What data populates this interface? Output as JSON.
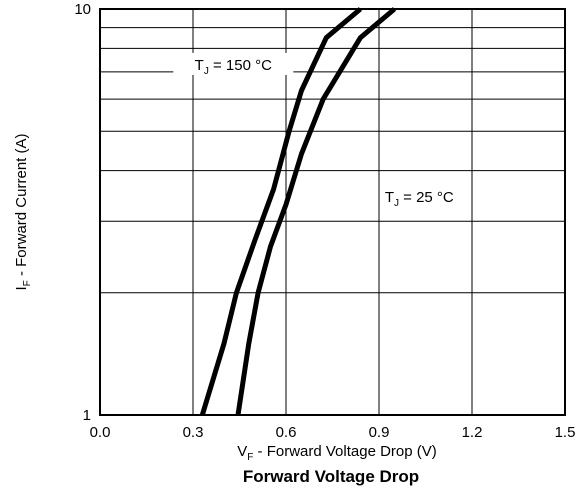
{
  "chart_data": {
    "type": "line",
    "title": "Forward Voltage Drop",
    "xlabel": {
      "main": "V",
      "sub": "F",
      "rest": " - Forward Voltage Drop (V)"
    },
    "ylabel": {
      "main": "I",
      "sub": "F",
      "rest": "  - Forward Current (A)"
    },
    "x_scale": "linear",
    "y_scale": "log",
    "xlim": [
      0.0,
      1.5
    ],
    "ylim": [
      1,
      10
    ],
    "x_ticks": [
      0.0,
      0.3,
      0.6,
      0.9,
      1.2,
      1.5
    ],
    "x_tick_labels": [
      "0.0",
      "0.3",
      "0.6",
      "0.9",
      "1.2",
      "1.5"
    ],
    "y_tick_labels": [
      "1",
      "10"
    ],
    "y_tick_values": [
      1,
      10
    ],
    "grid": true,
    "y_grid_values": [
      2,
      3,
      4,
      5,
      6,
      7,
      8,
      9
    ],
    "series": [
      {
        "name": "T_J = 150 °C",
        "x": [
          0.33,
          0.4,
          0.44,
          0.5,
          0.56,
          0.61,
          0.65,
          0.73,
          0.84
        ],
        "y": [
          1.0,
          1.5,
          2.0,
          2.7,
          3.6,
          5.0,
          6.3,
          8.5,
          10.0
        ]
      },
      {
        "name": "T_J = 25 °C",
        "x": [
          0.445,
          0.48,
          0.51,
          0.55,
          0.6,
          0.65,
          0.72,
          0.84,
          0.95
        ],
        "y": [
          1.0,
          1.5,
          2.0,
          2.6,
          3.3,
          4.4,
          6.0,
          8.5,
          10.0
        ]
      }
    ],
    "annotations": [
      {
        "main": "T",
        "sub": "J",
        "rest": " = 150  °C",
        "series": 0
      },
      {
        "main": "T",
        "sub": "J",
        "rest": " = 25  °C",
        "series": 1
      }
    ]
  }
}
